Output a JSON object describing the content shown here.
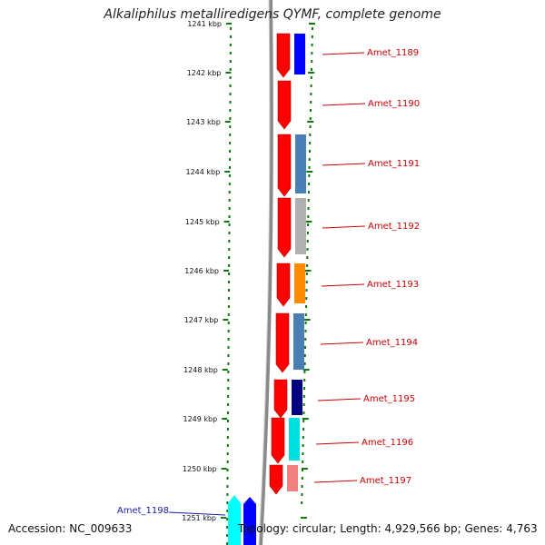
{
  "title": "Alkaliphilus metalliredigens QYMF, complete genome",
  "footer": {
    "accession": "Accession: NC_009633",
    "summary": "Topology: circular; Length: 4,929,566 bp; Genes: 4,763"
  },
  "colors": {
    "backbone": "#8a8a8a",
    "tick": "#0a7a0a",
    "label_red": "#cc0000",
    "label_blue": "#1a1aaa"
  },
  "ticks": [
    "1241 kbp",
    "1242 kbp",
    "1243 kbp",
    "1244 kbp",
    "1245 kbp",
    "1246 kbp",
    "1247 kbp",
    "1248 kbp",
    "1249 kbp",
    "1250 kbp",
    "1251 kbp"
  ],
  "genes": [
    {
      "label": "Amet_1189",
      "strand": "+",
      "category_color": "#0000ff",
      "label_color": "#cc0000"
    },
    {
      "label": "Amet_1190",
      "strand": "+",
      "category_color": "",
      "label_color": "#cc0000"
    },
    {
      "label": "Amet_1191",
      "strand": "+",
      "category_color": "#4a7fb5",
      "label_color": "#cc0000"
    },
    {
      "label": "Amet_1192",
      "strand": "+",
      "category_color": "#b0b0b0",
      "label_color": "#cc0000"
    },
    {
      "label": "Amet_1193",
      "strand": "+",
      "category_color": "#ff8c00",
      "label_color": "#cc0000"
    },
    {
      "label": "Amet_1194",
      "strand": "+",
      "category_color": "#4a7fb5",
      "label_color": "#cc0000"
    },
    {
      "label": "Amet_1195",
      "strand": "+",
      "category_color": "#000080",
      "label_color": "#cc0000"
    },
    {
      "label": "Amet_1196",
      "strand": "+",
      "category_color": "#00e0e0",
      "label_color": "#cc0000"
    },
    {
      "label": "Amet_1197",
      "strand": "+",
      "category_color": "#f08080",
      "label_color": "#cc0000"
    },
    {
      "label": "Amet_1198",
      "strand": "-",
      "category_color": "#0000ff",
      "label_color": "#1a1aaa"
    }
  ]
}
